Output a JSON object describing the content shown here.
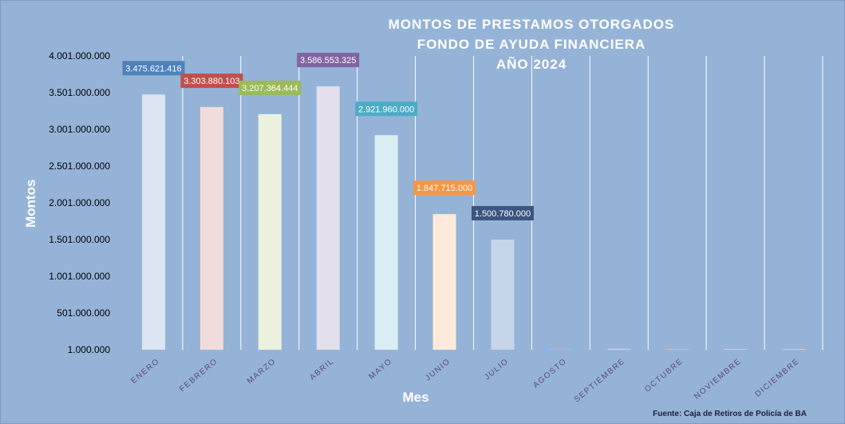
{
  "chart_data": {
    "type": "bar",
    "title_lines": [
      "MONTOS  DE  PRESTAMOS  OTORGADOS",
      "FONDO  DE  AYUDA  FINANCIERA",
      "AÑO  2024"
    ],
    "xlabel": "Mes",
    "ylabel": "Montos",
    "categories": [
      "ENERO",
      "FEBRERO",
      "MARZO",
      "ABRIL",
      "MAYO",
      "JUNIO",
      "JULIO",
      "AGOSTO",
      "SEPTIEMBRE",
      "OCTUBRE",
      "NOVIEMBRE",
      "DICIEMBRE"
    ],
    "values": [
      3475621416,
      3303880103,
      3207364444,
      3586553325,
      2921960000,
      1847715000,
      1500780000,
      1000000,
      1000000,
      1000000,
      1000000,
      1000000
    ],
    "value_labels": [
      "3.475.621.416",
      "3.303.880.103",
      "3.207.364.444",
      "3.586.553.325",
      "2.921.960.000",
      "1.847.715.000",
      "1.500.780.000",
      "",
      "",
      "",
      "",
      ""
    ],
    "ylim": [
      1000000,
      4001000000
    ],
    "yticks": [
      1000000,
      501000000,
      1001000000,
      1501000000,
      2001000000,
      2501000000,
      3001000000,
      3501000000,
      4001000000
    ],
    "ytick_labels": [
      "1.000.000",
      "501.000.000",
      "1.001.000.000",
      "1.501.000.000",
      "2.001.000.000",
      "2.501.000.000",
      "3.001.000.000",
      "3.501.000.000",
      "4.001.000.000"
    ],
    "bar_colors": [
      "#dce6f2",
      "#f2dcdb",
      "#ebf1de",
      "#e4dfec",
      "#dbeef4",
      "#fdeada",
      "#c6d5e8",
      "#d9a7a0",
      "#d0d8e8",
      "#d9b8b4",
      "#c4cde0",
      "#e7c8a8"
    ],
    "label_box_colors": [
      "#4f81bd",
      "#c0504d",
      "#9bbb59",
      "#8064a2",
      "#4bacc6",
      "#f79646",
      "#3a5580",
      "",
      "",
      "",
      "",
      ""
    ],
    "grid": "vertical",
    "legend": "none",
    "source": "Fuente: Caja de Retiros de Policía de BA"
  }
}
